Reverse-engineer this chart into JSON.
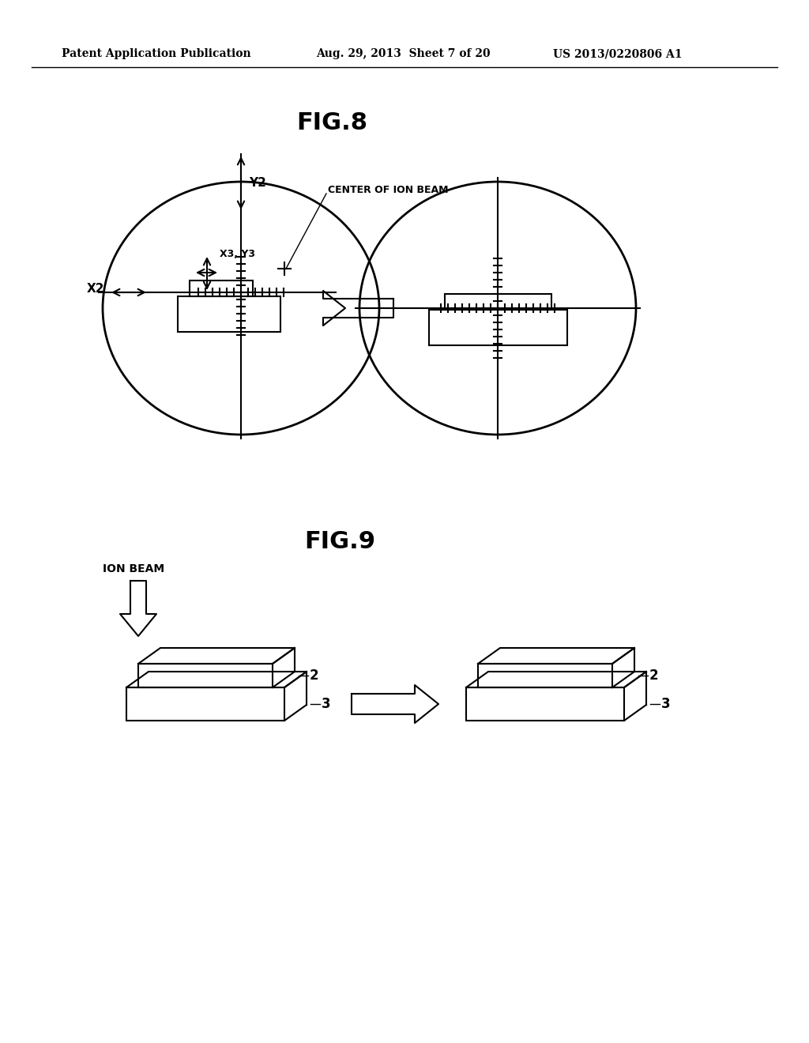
{
  "bg_color": "#ffffff",
  "header_left": "Patent Application Publication",
  "header_mid": "Aug. 29, 2013  Sheet 7 of 20",
  "header_right": "US 2013/0220806 A1",
  "fig8_title": "FIG.8",
  "fig9_title": "FIG.9",
  "label_center_ion_beam": "CENTER OF ION BEAM",
  "label_x2": "X2",
  "label_y2": "Y2",
  "label_x3y3": "X3, Y3",
  "label_ion_beam": "ION BEAM",
  "label_2": "2",
  "label_3": "3",
  "line_color": "#000000",
  "text_color": "#000000"
}
